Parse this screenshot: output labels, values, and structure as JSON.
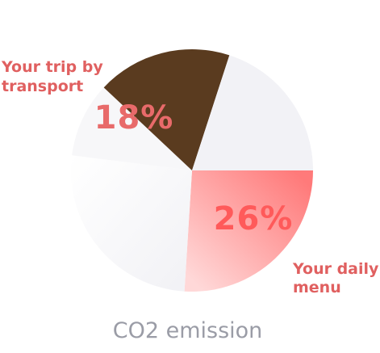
{
  "chart_data": {
    "type": "pie",
    "title": "CO2 emission",
    "slices": [
      {
        "label": "Your daily menu",
        "value": 26,
        "display": "26%",
        "color": "#ff8080",
        "highlight": true
      },
      {
        "label": "",
        "value": 26,
        "display": "",
        "color": "#f9f9fb",
        "highlight": false
      },
      {
        "label": "",
        "value": 10,
        "display": "",
        "color": "#f7f7f9",
        "highlight": false
      },
      {
        "label": "Your trip by transport",
        "value": 18,
        "display": "18%",
        "color": "#5a3b1f",
        "highlight": true
      },
      {
        "label": "",
        "value": 20,
        "display": "",
        "color": "#f2f2f6",
        "highlight": false
      }
    ],
    "legend": "none",
    "grid": false
  }
}
